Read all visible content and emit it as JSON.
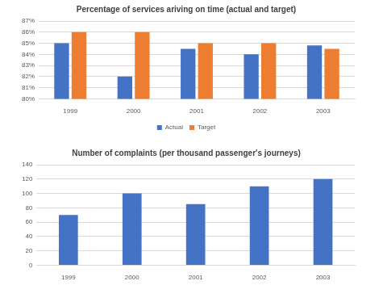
{
  "chart_data": [
    {
      "type": "bar",
      "title": "Percentage of services ariving on time (actual and target)",
      "categories": [
        "1999",
        "2000",
        "2001",
        "2002",
        "2003"
      ],
      "series": [
        {
          "name": "Actual",
          "color": "#4472c4",
          "values": [
            85,
            82,
            84.5,
            84,
            84.8
          ]
        },
        {
          "name": "Target",
          "color": "#ed7d31",
          "values": [
            86,
            86,
            85,
            85,
            84.5
          ]
        }
      ],
      "ylim": [
        80,
        87
      ],
      "yticks": [
        {
          "value": 80,
          "label": "80%"
        },
        {
          "value": 81,
          "label": "81%"
        },
        {
          "value": 82,
          "label": "82%"
        },
        {
          "value": 83,
          "label": "83%"
        },
        {
          "value": 84,
          "label": "84%"
        },
        {
          "value": 85,
          "label": "85%"
        },
        {
          "value": 86,
          "label": "86%"
        },
        {
          "value": 87,
          "label": "87%"
        }
      ],
      "grid": true,
      "legend": "bottom"
    },
    {
      "type": "bar",
      "title": "Number of complaints (per thousand passenger's journeys)",
      "categories": [
        "1999",
        "2000",
        "2001",
        "2002",
        "2003"
      ],
      "values": [
        70,
        100,
        85,
        110,
        120
      ],
      "color": "#4472c4",
      "ylim": [
        0,
        140
      ],
      "yticks": [
        0,
        20,
        40,
        60,
        80,
        100,
        120,
        140
      ],
      "grid": true
    }
  ]
}
